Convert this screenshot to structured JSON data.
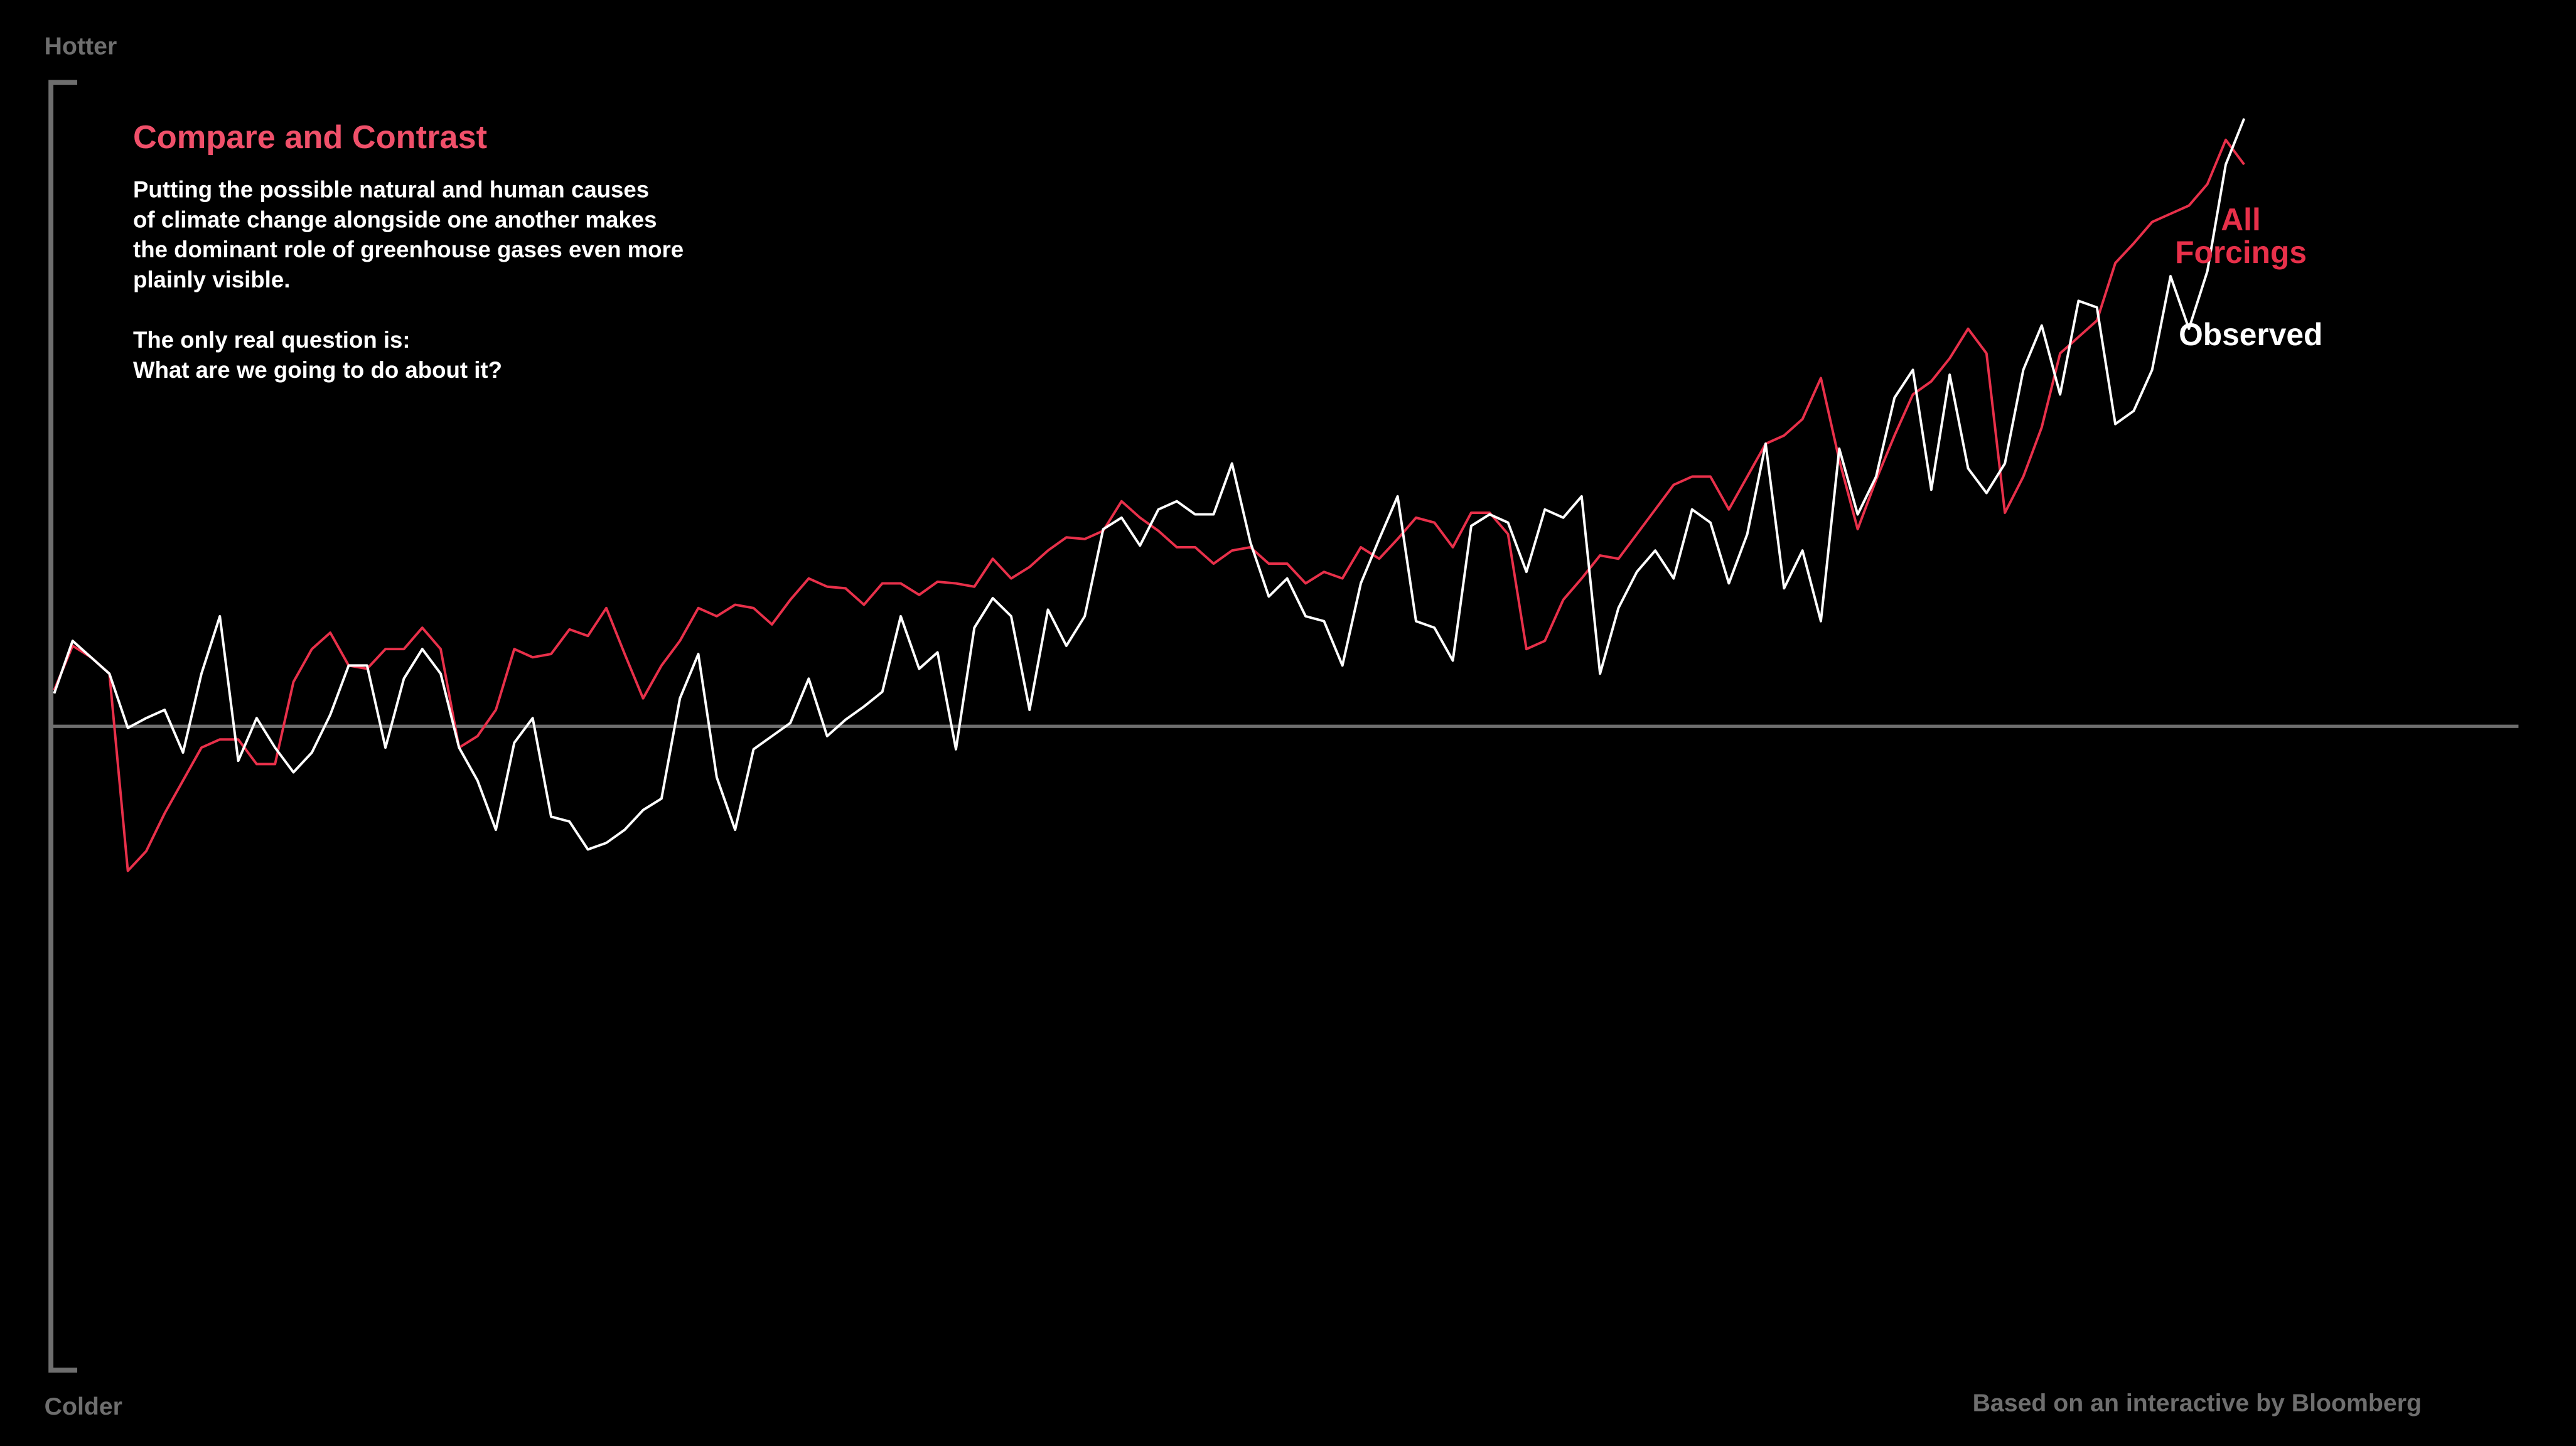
{
  "chart_data": {
    "type": "line",
    "title": "Compare and Contrast",
    "body": [
      [
        "Putting the possible natural and human causes",
        "of climate change alongside one another makes",
        "the dominant role of greenhouse gases even more",
        "plainly visible."
      ],
      [
        "The only real question is:",
        "What are we going to do about it?"
      ]
    ],
    "y_top_label": "Hotter",
    "y_bottom_label": "Colder",
    "source": "Based on an interactive by Bloomberg",
    "ylim": [
      -392,
      392
    ],
    "categories": [
      null,
      null,
      null,
      null,
      null,
      null,
      null,
      null,
      null,
      null,
      null,
      null,
      null,
      null,
      null,
      null,
      null,
      null,
      null,
      null,
      null,
      null,
      null,
      null,
      null,
      null,
      null,
      null,
      null,
      null,
      null,
      null,
      null,
      null,
      null,
      null,
      null,
      null,
      null,
      null,
      null,
      null,
      null,
      null,
      null,
      null,
      null,
      null,
      null,
      null,
      null,
      null,
      null,
      null,
      null,
      null,
      null,
      null,
      null,
      null,
      null,
      null,
      null,
      null,
      null,
      null,
      null,
      null,
      null,
      null,
      null,
      null,
      null,
      null,
      null,
      null,
      null,
      null,
      null,
      null,
      null,
      null,
      null,
      null,
      null,
      null,
      null,
      null,
      null,
      null,
      null,
      null,
      null,
      null,
      null,
      null,
      null,
      null,
      null,
      null,
      null,
      null,
      null,
      null,
      null,
      null,
      null,
      null,
      null,
      null,
      null,
      null,
      null,
      null,
      null,
      null,
      null,
      null,
      null,
      null
    ],
    "series": [
      {
        "name": "Observed",
        "color": "#ffffff",
        "values": [
          20,
          52,
          42,
          32,
          -1,
          5,
          10,
          -16,
          32,
          67,
          -21,
          5,
          -13,
          -28,
          -16,
          7,
          37,
          37,
          -13,
          29,
          47,
          32,
          -13,
          -33,
          -63,
          -10,
          5,
          -55,
          -58,
          -75,
          -71,
          -63,
          -51,
          -44,
          17,
          44,
          -31,
          -63,
          -14,
          -6,
          2,
          29,
          -6,
          4,
          12,
          21,
          67,
          35,
          45,
          -14,
          60,
          78,
          67,
          10,
          71,
          49,
          67,
          120,
          127,
          110,
          132,
          137,
          129,
          129,
          160,
          112,
          79,
          90,
          67,
          64,
          37,
          87,
          114,
          140,
          64,
          60,
          40,
          122,
          129,
          124,
          94,
          132,
          127,
          140,
          32,
          72,
          94,
          107,
          90,
          132,
          124,
          87,
          117,
          172,
          84,
          107,
          64,
          169,
          129,
          152,
          200,
          217,
          144,
          214,
          157,
          142,
          160,
          217,
          244,
          202,
          259,
          255,
          184,
          192,
          217,
          274,
          242,
          277,
          342,
          370
        ]
      },
      {
        "name": "All Forcings",
        "color": "#e8304a",
        "values": [
          22,
          49,
          42,
          32,
          -88,
          -76,
          -53,
          -33,
          -13,
          -8,
          -8,
          -23,
          -23,
          27,
          47,
          57,
          37,
          35,
          47,
          47,
          60,
          47,
          -13,
          -6,
          10,
          47,
          42,
          44,
          59,
          55,
          72,
          44,
          17,
          37,
          52,
          72,
          67,
          74,
          72,
          62,
          77,
          90,
          85,
          84,
          74,
          87,
          87,
          80,
          88,
          87,
          85,
          102,
          90,
          97,
          107,
          115,
          114,
          119,
          137,
          127,
          119,
          109,
          109,
          99,
          107,
          109,
          99,
          99,
          87,
          94,
          90,
          109,
          102,
          114,
          127,
          124,
          109,
          130,
          130,
          117,
          47,
          52,
          77,
          90,
          104,
          102,
          117,
          132,
          147,
          152,
          152,
          132,
          152,
          172,
          177,
          187,
          212,
          162,
          120,
          150,
          177,
          202,
          210,
          224,
          242,
          227,
          130,
          152,
          182,
          227,
          237,
          247,
          282,
          294,
          307,
          312,
          317,
          330,
          357,
          342
        ]
      }
    ]
  }
}
